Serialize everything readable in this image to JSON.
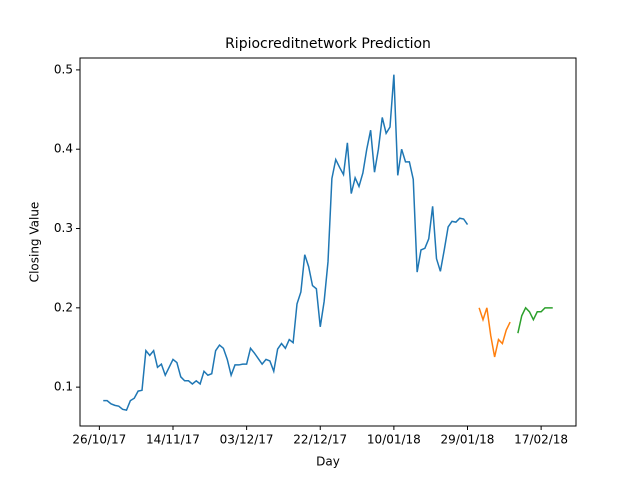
{
  "chart_data": {
    "type": "line",
    "title": "Ripiocreditnetwork Prediction",
    "x_label": "Day",
    "y_label": "Closing Value",
    "xlim": [
      "2017-10-21",
      "2018-02-26"
    ],
    "xticks": [
      {
        "value": "2017-10-26",
        "label": "26/10/17"
      },
      {
        "value": "2017-11-14",
        "label": "14/11/17"
      },
      {
        "value": "2017-12-03",
        "label": "03/12/17"
      },
      {
        "value": "2017-12-22",
        "label": "22/12/17"
      },
      {
        "value": "2018-01-10",
        "label": "10/01/18"
      },
      {
        "value": "2018-01-29",
        "label": "29/01/18"
      },
      {
        "value": "2018-02-17",
        "label": "17/02/18"
      }
    ],
    "ylim": [
      0.051,
      0.515
    ],
    "yticks": [
      0.1,
      0.2,
      0.3,
      0.4,
      0.5
    ],
    "grid": false,
    "series": [
      {
        "color": "#1f77b4",
        "x": [
          "2017-10-27",
          "2017-10-28",
          "2017-10-29",
          "2017-10-30",
          "2017-10-31",
          "2017-11-01",
          "2017-11-02",
          "2017-11-03",
          "2017-11-04",
          "2017-11-05",
          "2017-11-06",
          "2017-11-07",
          "2017-11-08",
          "2017-11-09",
          "2017-11-10",
          "2017-11-11",
          "2017-11-12",
          "2017-11-13",
          "2017-11-14",
          "2017-11-15",
          "2017-11-16",
          "2017-11-17",
          "2017-11-18",
          "2017-11-19",
          "2017-11-20",
          "2017-11-21",
          "2017-11-22",
          "2017-11-23",
          "2017-11-24",
          "2017-11-25",
          "2017-11-26",
          "2017-11-27",
          "2017-11-28",
          "2017-11-29",
          "2017-11-30",
          "2017-12-01",
          "2017-12-02",
          "2017-12-03",
          "2017-12-04",
          "2017-12-05",
          "2017-12-06",
          "2017-12-07",
          "2017-12-08",
          "2017-12-09",
          "2017-12-10",
          "2017-12-11",
          "2017-12-12",
          "2017-12-13",
          "2017-12-14",
          "2017-12-15",
          "2017-12-16",
          "2017-12-17",
          "2017-12-18",
          "2017-12-19",
          "2017-12-20",
          "2017-12-21",
          "2017-12-22",
          "2017-12-23",
          "2017-12-24",
          "2017-12-25",
          "2017-12-26",
          "2017-12-27",
          "2017-12-28",
          "2017-12-29",
          "2017-12-30",
          "2017-12-31",
          "2018-01-01",
          "2018-01-02",
          "2018-01-03",
          "2018-01-04",
          "2018-01-05",
          "2018-01-06",
          "2018-01-07",
          "2018-01-08",
          "2018-01-09",
          "2018-01-10",
          "2018-01-11",
          "2018-01-12",
          "2018-01-13",
          "2018-01-14",
          "2018-01-15",
          "2018-01-16",
          "2018-01-17",
          "2018-01-18",
          "2018-01-19",
          "2018-01-20",
          "2018-01-21",
          "2018-01-22",
          "2018-01-23",
          "2018-01-24",
          "2018-01-25",
          "2018-01-26",
          "2018-01-27",
          "2018-01-28",
          "2018-01-29"
        ],
        "values": [
          0.083,
          0.083,
          0.079,
          0.077,
          0.076,
          0.072,
          0.071,
          0.083,
          0.086,
          0.095,
          0.096,
          0.146,
          0.14,
          0.146,
          0.125,
          0.129,
          0.115,
          0.125,
          0.135,
          0.131,
          0.113,
          0.108,
          0.108,
          0.104,
          0.108,
          0.104,
          0.12,
          0.115,
          0.117,
          0.146,
          0.153,
          0.149,
          0.135,
          0.115,
          0.128,
          0.128,
          0.129,
          0.129,
          0.149,
          0.143,
          0.136,
          0.129,
          0.135,
          0.133,
          0.12,
          0.148,
          0.155,
          0.149,
          0.16,
          0.156,
          0.205,
          0.22,
          0.267,
          0.252,
          0.228,
          0.224,
          0.176,
          0.208,
          0.258,
          0.363,
          0.387,
          0.377,
          0.368,
          0.408,
          0.344,
          0.364,
          0.353,
          0.37,
          0.4,
          0.424,
          0.371,
          0.4,
          0.44,
          0.42,
          0.428,
          0.494,
          0.367,
          0.4,
          0.384,
          0.384,
          0.362,
          0.245,
          0.273,
          0.275,
          0.287,
          0.328,
          0.262,
          0.246,
          0.273,
          0.302,
          0.309,
          0.308,
          0.313,
          0.312,
          0.305
        ]
      },
      {
        "color": "#ff7f0e",
        "x": [
          "2018-02-01",
          "2018-02-02",
          "2018-02-03",
          "2018-02-04",
          "2018-02-05",
          "2018-02-06",
          "2018-02-07",
          "2018-02-08",
          "2018-02-09"
        ],
        "values": [
          0.2,
          0.185,
          0.2,
          0.165,
          0.138,
          0.16,
          0.155,
          0.172,
          0.182
        ]
      },
      {
        "color": "#2ca02c",
        "x": [
          "2018-02-11",
          "2018-02-12",
          "2018-02-13",
          "2018-02-14",
          "2018-02-15",
          "2018-02-16",
          "2018-02-17",
          "2018-02-18",
          "2018-02-19",
          "2018-02-20"
        ],
        "values": [
          0.168,
          0.19,
          0.2,
          0.195,
          0.185,
          0.195,
          0.195,
          0.2,
          0.2,
          0.2
        ]
      }
    ]
  }
}
